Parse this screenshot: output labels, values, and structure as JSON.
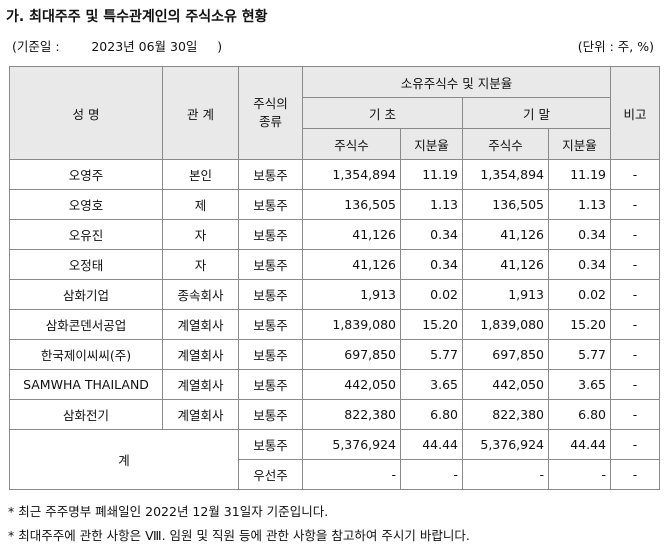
{
  "title": "가. 최대주주 및 특수관계인의 주식소유 현황",
  "basis_date": "(기준일 :        2023년 06월 30일     )",
  "unit": "(단위 : 주, %)",
  "headers": {
    "name": "성 명",
    "relation": "관 계",
    "stock_type": "주식의\n종류",
    "holdings": "소유주식수 및 지분율",
    "begin": "기 초",
    "end": "기 말",
    "shares": "주식수",
    "ratio": "지분율",
    "note": "비고"
  },
  "rows": [
    {
      "name": "오영주",
      "relation": "본인",
      "type": "보통주",
      "begin_shares": "1,354,894",
      "begin_ratio": "11.19",
      "end_shares": "1,354,894",
      "end_ratio": "11.19",
      "note": "-"
    },
    {
      "name": "오영호",
      "relation": "제",
      "type": "보통주",
      "begin_shares": "136,505",
      "begin_ratio": "1.13",
      "end_shares": "136,505",
      "end_ratio": "1.13",
      "note": "-"
    },
    {
      "name": "오유진",
      "relation": "자",
      "type": "보통주",
      "begin_shares": "41,126",
      "begin_ratio": "0.34",
      "end_shares": "41,126",
      "end_ratio": "0.34",
      "note": "-"
    },
    {
      "name": "오정태",
      "relation": "자",
      "type": "보통주",
      "begin_shares": "41,126",
      "begin_ratio": "0.34",
      "end_shares": "41,126",
      "end_ratio": "0.34",
      "note": "-"
    },
    {
      "name": "삼화기업",
      "relation": "종속회사",
      "type": "보통주",
      "begin_shares": "1,913",
      "begin_ratio": "0.02",
      "end_shares": "1,913",
      "end_ratio": "0.02",
      "note": "-"
    },
    {
      "name": "삼화콘덴서공업",
      "relation": "계열회사",
      "type": "보통주",
      "begin_shares": "1,839,080",
      "begin_ratio": "15.20",
      "end_shares": "1,839,080",
      "end_ratio": "15.20",
      "note": "-"
    },
    {
      "name": "한국제이씨씨(주)",
      "relation": "계열회사",
      "type": "보통주",
      "begin_shares": "697,850",
      "begin_ratio": "5.77",
      "end_shares": "697,850",
      "end_ratio": "5.77",
      "note": "-"
    },
    {
      "name": "SAMWHA THAILAND",
      "relation": "계열회사",
      "type": "보통주",
      "begin_shares": "442,050",
      "begin_ratio": "3.65",
      "end_shares": "442,050",
      "end_ratio": "3.65",
      "note": "-"
    },
    {
      "name": "삼화전기",
      "relation": "계열회사",
      "type": "보통주",
      "begin_shares": "822,380",
      "begin_ratio": "6.80",
      "end_shares": "822,380",
      "end_ratio": "6.80",
      "note": "-"
    }
  ],
  "total": {
    "label": "계",
    "rows": [
      {
        "type": "보통주",
        "begin_shares": "5,376,924",
        "begin_ratio": "44.44",
        "end_shares": "5,376,924",
        "end_ratio": "44.44",
        "note": "-"
      },
      {
        "type": "우선주",
        "begin_shares": "-",
        "begin_ratio": "-",
        "end_shares": "-",
        "end_ratio": "-",
        "note": "-"
      }
    ]
  },
  "notes": [
    "* 최근 주주명부 폐쇄일인 2022년 12월 31일자 기준입니다.",
    "* 최대주주에 관한 사항은 Ⅷ. 임원 및 직원 등에 관한 사항을 참고하여 주시기 바랍니다."
  ]
}
